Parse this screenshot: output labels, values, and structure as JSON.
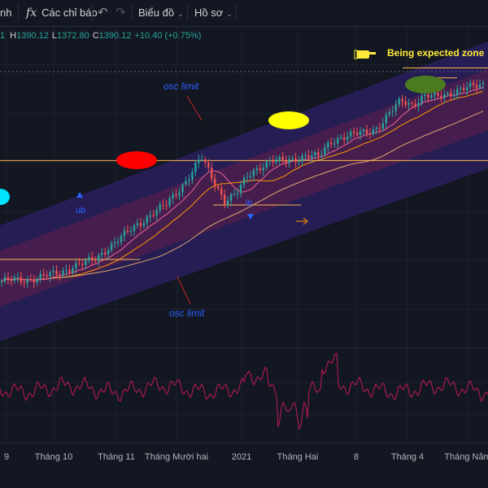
{
  "toolbar": {
    "partial_left": "nh",
    "indicators_label": "Các chỉ báo",
    "chart_menu_label": "Biểu đồ",
    "profile_menu_label": "Hồ sơ",
    "icons": [
      "fx-icon",
      "undo-icon",
      "redo-icon",
      "chevron-down-icon"
    ]
  },
  "ohlc": {
    "o_partial": "1",
    "h_label": "H",
    "h_value": "1390.12",
    "l_label": "L",
    "l_value": "1372.80",
    "c_label": "C",
    "c_value": "1390.12",
    "change": "+10.40 (+0.75%)"
  },
  "annotations": {
    "osc_limit_top": "osc limit",
    "osc_limit_bottom": "osc limit",
    "ub": "ub",
    "lb": "lb",
    "expected_zone": "Being expected zone",
    "pointer_icon": "hand-pointer-icon"
  },
  "colors": {
    "background": "#131722",
    "up": "#26a69a",
    "down": "#ef5350",
    "channel_outer": "#2a1f5e",
    "channel_inner": "#4a1f4e",
    "oscillator": "#c2185b",
    "ellipse_cyan": "#00e5ff",
    "ellipse_red": "#ff0000",
    "ellipse_yellow": "#ffff00",
    "ellipse_green": "#4a7c1f",
    "annotation_blue": "#2962ff",
    "expected_yellow": "#ffeb3b"
  },
  "chart_data": {
    "type": "line",
    "title": "",
    "xlabel": "",
    "ylabel": "",
    "x_ticks": [
      "9",
      "Tháng 10",
      "Tháng 11",
      "Tháng Mười hai",
      "2021",
      "Tháng Hai",
      "8",
      "Tháng 4",
      "Tháng Năm"
    ],
    "series": [
      {
        "values": [
          912,
          915,
          914,
          920,
          925,
          930,
          945,
          952,
          960,
          985,
          1005,
          1025,
          1045,
          1065,
          1080,
          1110,
          1145,
          1185,
          1135,
          1090,
          1105,
          1145,
          1165,
          1178,
          1175,
          1182,
          1190,
          1185,
          1220,
          1230,
          1235,
          1240,
          1250,
          1280,
          1310,
          1302,
          1320,
          1318,
          1325,
          1335,
          1340,
          1345
        ]
      }
    ],
    "horizontal_levels": [
      1178,
      1080,
      960,
      1360,
      1382
    ],
    "bands": {
      "outer_top_start": 1035,
      "outer_top_end": 1440,
      "outer_bottom_start": 780,
      "outer_bottom_end": 1160
    }
  }
}
